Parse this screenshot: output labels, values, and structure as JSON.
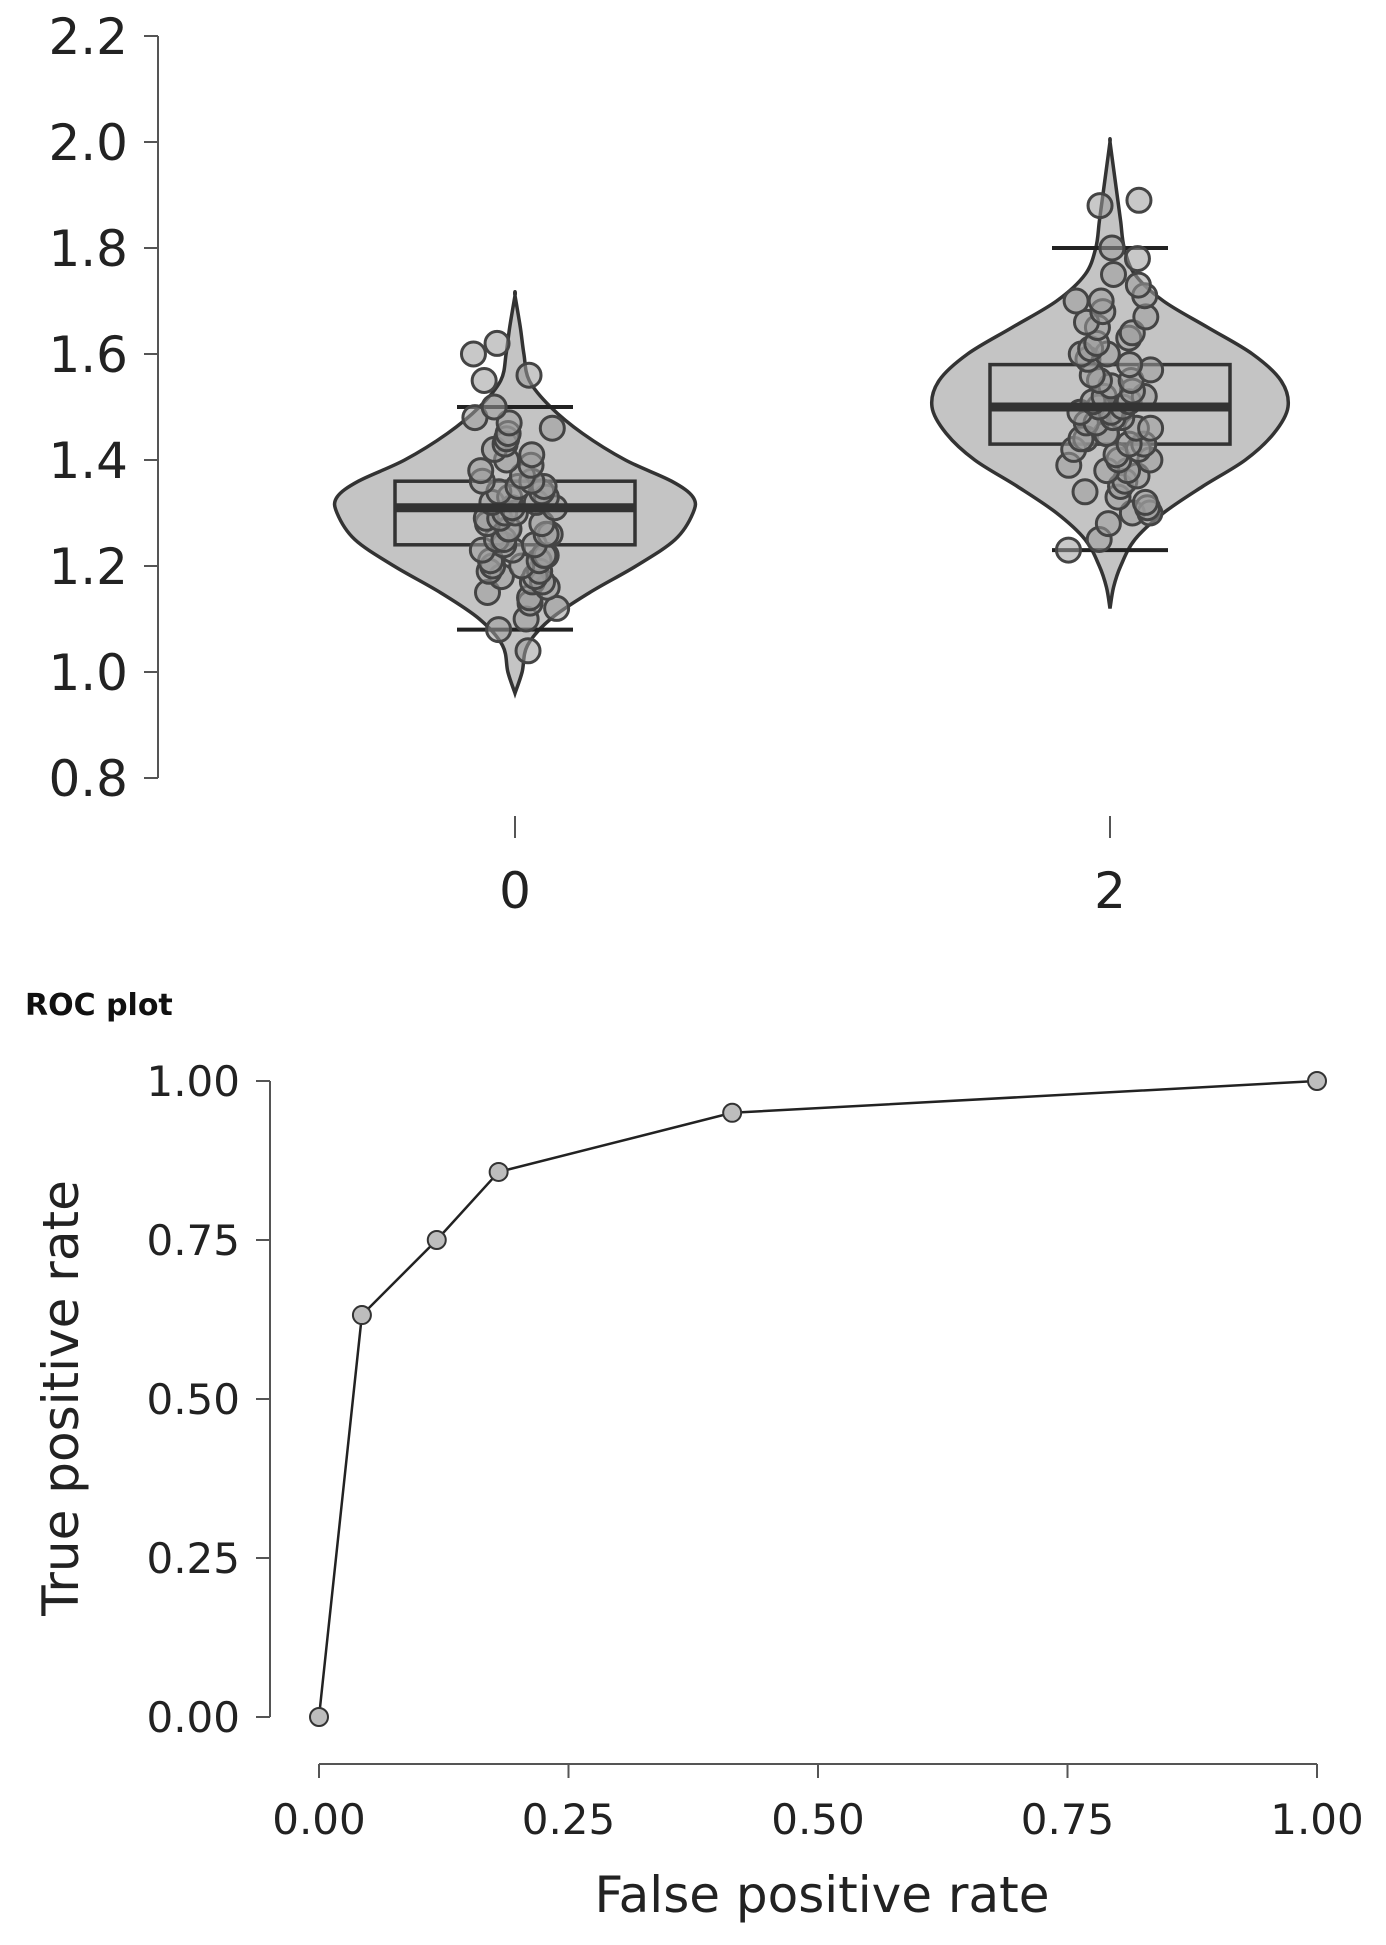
{
  "chart_data": [
    {
      "type": "violin-box",
      "title": "",
      "xlabel": "",
      "ylabel": "",
      "ylim": [
        0.8,
        2.2
      ],
      "yticks": [
        "0.8",
        "1.0",
        "1.2",
        "1.4",
        "1.6",
        "1.8",
        "2.0",
        "2.2"
      ],
      "grid": false,
      "groups": [
        {
          "name": "0",
          "box": {
            "whisker_low": 1.08,
            "q1": 1.24,
            "median": 1.31,
            "q3": 1.36,
            "whisker_high": 1.5
          },
          "violin": {
            "min": 0.96,
            "max": 1.71,
            "profile": [
              [
                0.96,
                0.0
              ],
              [
                1.0,
                0.04
              ],
              [
                1.05,
                0.07
              ],
              [
                1.1,
                0.2
              ],
              [
                1.15,
                0.42
              ],
              [
                1.2,
                0.68
              ],
              [
                1.25,
                0.9
              ],
              [
                1.3,
                1.0
              ],
              [
                1.33,
                1.0
              ],
              [
                1.36,
                0.88
              ],
              [
                1.4,
                0.62
              ],
              [
                1.45,
                0.38
              ],
              [
                1.5,
                0.2
              ],
              [
                1.55,
                0.08
              ],
              [
                1.6,
                0.05
              ],
              [
                1.65,
                0.03
              ],
              [
                1.71,
                0.0
              ]
            ]
          },
          "points": [
            1.04,
            1.08,
            1.1,
            1.12,
            1.13,
            1.14,
            1.15,
            1.16,
            1.17,
            1.17,
            1.18,
            1.18,
            1.19,
            1.19,
            1.2,
            1.2,
            1.21,
            1.21,
            1.22,
            1.22,
            1.23,
            1.23,
            1.24,
            1.24,
            1.25,
            1.25,
            1.26,
            1.26,
            1.27,
            1.27,
            1.28,
            1.28,
            1.29,
            1.29,
            1.3,
            1.3,
            1.31,
            1.31,
            1.32,
            1.32,
            1.33,
            1.33,
            1.34,
            1.34,
            1.35,
            1.35,
            1.36,
            1.36,
            1.37,
            1.38,
            1.39,
            1.4,
            1.41,
            1.42,
            1.43,
            1.44,
            1.45,
            1.46,
            1.47,
            1.48,
            1.5,
            1.55,
            1.56,
            1.6,
            1.62
          ]
        },
        {
          "name": "2",
          "box": {
            "whisker_low": 1.23,
            "q1": 1.43,
            "median": 1.5,
            "q3": 1.58,
            "whisker_high": 1.8
          },
          "violin": {
            "min": 1.12,
            "max": 2.0,
            "profile": [
              [
                1.12,
                0.0
              ],
              [
                1.16,
                0.02
              ],
              [
                1.2,
                0.06
              ],
              [
                1.25,
                0.14
              ],
              [
                1.3,
                0.3
              ],
              [
                1.35,
                0.52
              ],
              [
                1.4,
                0.76
              ],
              [
                1.45,
                0.92
              ],
              [
                1.5,
                1.0
              ],
              [
                1.55,
                0.96
              ],
              [
                1.6,
                0.8
              ],
              [
                1.65,
                0.55
              ],
              [
                1.7,
                0.3
              ],
              [
                1.75,
                0.14
              ],
              [
                1.8,
                0.08
              ],
              [
                1.85,
                0.06
              ],
              [
                1.9,
                0.04
              ],
              [
                1.95,
                0.02
              ],
              [
                2.0,
                0.0
              ]
            ]
          },
          "points": [
            1.23,
            1.25,
            1.28,
            1.3,
            1.3,
            1.31,
            1.32,
            1.33,
            1.34,
            1.35,
            1.36,
            1.37,
            1.38,
            1.38,
            1.39,
            1.4,
            1.4,
            1.41,
            1.42,
            1.42,
            1.43,
            1.43,
            1.44,
            1.44,
            1.45,
            1.45,
            1.46,
            1.46,
            1.47,
            1.47,
            1.48,
            1.48,
            1.49,
            1.49,
            1.5,
            1.5,
            1.51,
            1.51,
            1.52,
            1.52,
            1.53,
            1.54,
            1.55,
            1.55,
            1.56,
            1.57,
            1.58,
            1.59,
            1.6,
            1.6,
            1.61,
            1.62,
            1.63,
            1.64,
            1.65,
            1.66,
            1.67,
            1.68,
            1.7,
            1.7,
            1.71,
            1.73,
            1.75,
            1.78,
            1.8,
            1.88,
            1.89
          ]
        }
      ]
    },
    {
      "type": "line",
      "title": "ROC plot",
      "xlabel": "False positive rate",
      "ylabel": "True positive rate",
      "xlim": [
        0,
        1
      ],
      "ylim": [
        0,
        1
      ],
      "xticks": [
        "0.00",
        "0.25",
        "0.50",
        "0.75",
        "1.00"
      ],
      "yticks": [
        "0.00",
        "0.25",
        "0.50",
        "0.75",
        "1.00"
      ],
      "grid": false,
      "series": [
        {
          "x": [
            0.0,
            0.043,
            0.118,
            0.18,
            0.414,
            1.0
          ],
          "y": [
            0.0,
            0.632,
            0.75,
            0.857,
            0.95,
            1.0
          ]
        }
      ]
    }
  ],
  "colors": {
    "fill": "#c4c4c4",
    "stroke": "#333333",
    "point_fill": "#9a9a9a",
    "point_stroke": "#444444"
  }
}
